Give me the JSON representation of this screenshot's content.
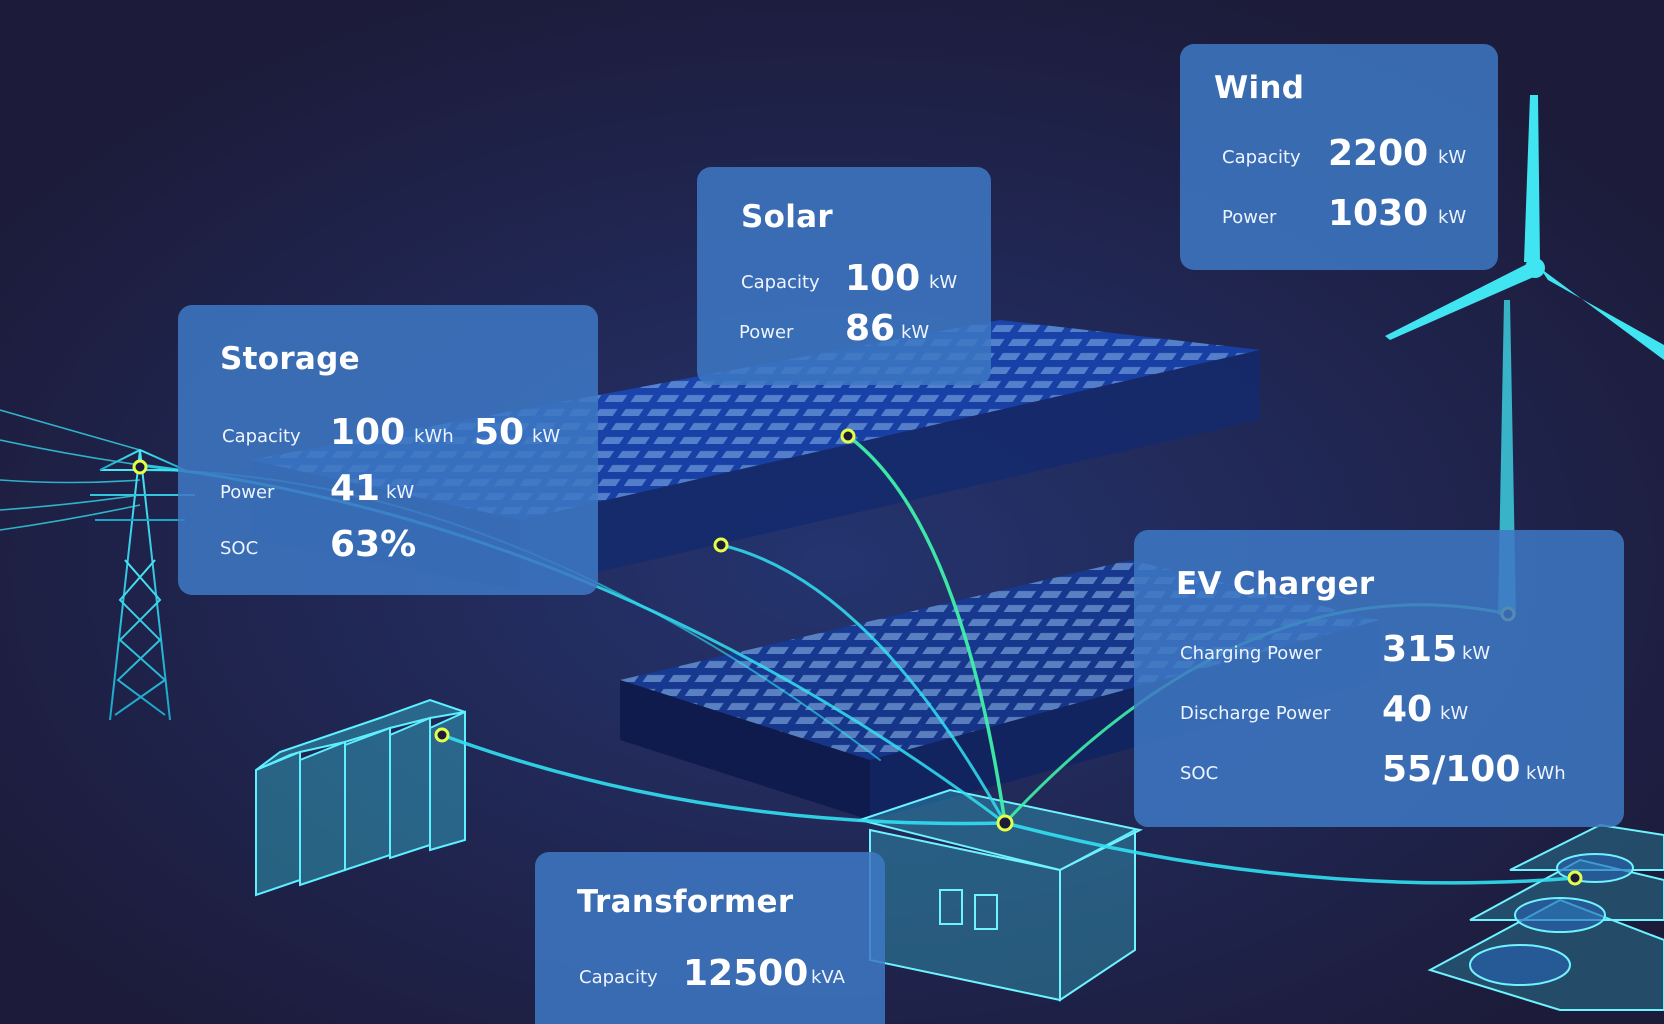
{
  "colors": {
    "background": "#1c1b3a",
    "card": "#3e78c4",
    "wire": "#31e0f2",
    "node": "#e3ff4a"
  },
  "storage": {
    "title": "Storage",
    "capacity_label": "Capacity",
    "capacity_energy": "100",
    "capacity_energy_unit": "kWh",
    "capacity_power": "50",
    "capacity_power_unit": "kW",
    "power_label": "Power",
    "power_value": "41",
    "power_unit": "kW",
    "soc_label": "SOC",
    "soc_value": "63%"
  },
  "solar": {
    "title": "Solar",
    "capacity_label": "Capacity",
    "capacity_value": "100",
    "capacity_unit": "kW",
    "power_label": "Power",
    "power_value": "86",
    "power_unit": "kW"
  },
  "wind": {
    "title": "Wind",
    "capacity_label": "Capacity",
    "capacity_value": "2200",
    "capacity_unit": "kW",
    "power_label": "Power",
    "power_value": "1030",
    "power_unit": "kW"
  },
  "ev_charger": {
    "title": "EV Charger",
    "charging_label": "Charging Power",
    "charging_value": "315",
    "charging_unit": "kW",
    "discharge_label": "Discharge Power",
    "discharge_value": "40",
    "discharge_unit": "kW",
    "soc_label": "SOC",
    "soc_value": "55/100",
    "soc_unit": "kWh"
  },
  "transformer": {
    "title": "Transformer",
    "capacity_label": "Capacity",
    "capacity_value": "12500",
    "capacity_unit": "kVA"
  }
}
